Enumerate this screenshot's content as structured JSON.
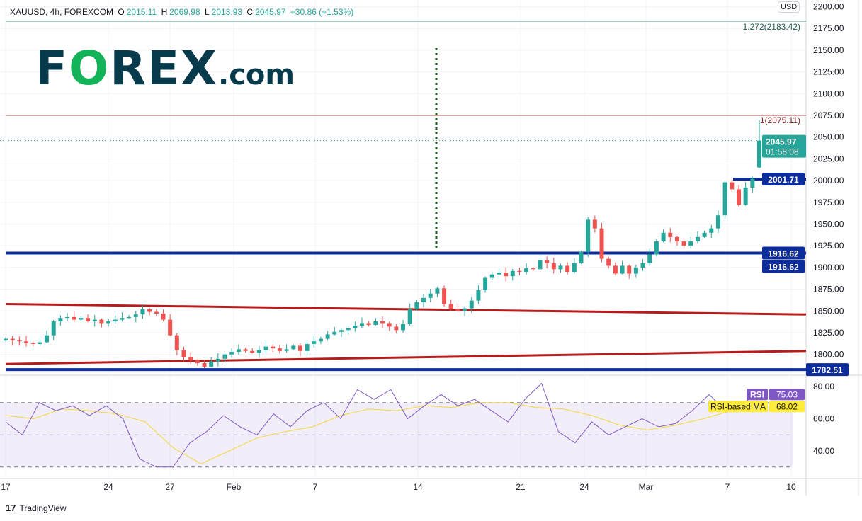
{
  "legend": {
    "symbol": "XAUUSD, 4h, FOREXCOM",
    "o_label": "O",
    "open": "2015.11",
    "h_label": "H",
    "high": "2069.98",
    "l_label": "L",
    "low": "2013.93",
    "c_label": "C",
    "close": "2045.97",
    "change": "+30.86 (+1.53%)"
  },
  "logo": {
    "text": "FOREX.com"
  },
  "currency": "USD",
  "footer": {
    "brand": "TradingView"
  },
  "colors": {
    "up": "#26a69a",
    "down": "#ef5350",
    "support": "#0d2d9c",
    "trend": "#b71c1c",
    "fib_ext": "#1e5e4e",
    "fib_1": "#7a1e1e",
    "rsi": "#7e57c2",
    "rsi_ma": "#f5d63d"
  },
  "chart_data": {
    "type": "candlestick",
    "price_axis": {
      "ticks": [
        "2200.00",
        "2175.00",
        "2150.00",
        "2125.00",
        "2100.00",
        "2075.00",
        "2050.00",
        "2025.00",
        "2000.00",
        "1975.00",
        "1950.00",
        "1925.00",
        "1900.00",
        "1875.00",
        "1850.00",
        "1825.00",
        "1800.00"
      ],
      "range": [
        1780,
        2205
      ]
    },
    "time_axis": {
      "ticks": [
        "17",
        "24",
        "27",
        "Feb",
        "7",
        "14",
        "21",
        "24",
        "Mar",
        "7",
        "10"
      ]
    },
    "closes": [
      1818,
      1816,
      1815,
      1813,
      1812,
      1814,
      1822,
      1838,
      1842,
      1843,
      1840,
      1842,
      1838,
      1840,
      1836,
      1838,
      1840,
      1842,
      1843,
      1846,
      1852,
      1849,
      1847,
      1840,
      1822,
      1805,
      1797,
      1793,
      1790,
      1786,
      1792,
      1795,
      1800,
      1803,
      1806,
      1804,
      1802,
      1805,
      1809,
      1807,
      1804,
      1806,
      1810,
      1804,
      1812,
      1815,
      1818,
      1823,
      1826,
      1828,
      1830,
      1833,
      1836,
      1834,
      1838,
      1836,
      1832,
      1828,
      1835,
      1852,
      1860,
      1865,
      1870,
      1876,
      1858,
      1852,
      1850,
      1853,
      1862,
      1874,
      1888,
      1892,
      1894,
      1890,
      1896,
      1895,
      1899,
      1898,
      1908,
      1905,
      1898,
      1902,
      1895,
      1905,
      1918,
      1955,
      1945,
      1910,
      1902,
      1893,
      1902,
      1893,
      1900,
      1905,
      1915,
      1930,
      1940,
      1935,
      1930,
      1925,
      1930,
      1935,
      1940,
      1945,
      1960,
      1998,
      1990,
      1972,
      1992,
      2002,
      2045.97
    ],
    "last_price": {
      "value": "2045.97",
      "countdown": "01:58:08"
    },
    "levels": [
      {
        "label": "1.272(2183.42)",
        "price": 2183.42,
        "kind": "fib_ext"
      },
      {
        "label": "1(2075.11)",
        "price": 2075.11,
        "kind": "fib_1"
      }
    ],
    "supports": [
      {
        "label": "2001.71",
        "price": 2001.71,
        "partial": true
      },
      {
        "label": "1916.62",
        "price": 1916.62
      },
      {
        "label": "1782.51",
        "price": 1782.51
      }
    ],
    "trendlines": [
      {
        "from": 1858,
        "to": 1846
      },
      {
        "from": 1789,
        "to": 1804
      }
    ],
    "rsi": {
      "label": "RSI",
      "value": "75.03",
      "ma_label": "RSI-based MA",
      "ma_value": "68.02",
      "ticks": [
        "80.00",
        "60.00",
        "40.00"
      ],
      "bands": [
        70,
        50,
        30
      ],
      "values": [
        58,
        50,
        70,
        65,
        68,
        62,
        68,
        60,
        35,
        30,
        30,
        45,
        52,
        62,
        55,
        50,
        63,
        55,
        65,
        70,
        60,
        78,
        72,
        78,
        60,
        68,
        75,
        68,
        72,
        65,
        58,
        72,
        82,
        52,
        45,
        58,
        50,
        55,
        60,
        55,
        57,
        65,
        75,
        65,
        70,
        75.03
      ],
      "ma": [
        62,
        60,
        66,
        65,
        63,
        58,
        42,
        32,
        40,
        48,
        52,
        55,
        62,
        66,
        65,
        68,
        67,
        70,
        70,
        67,
        66,
        62,
        56,
        53,
        56,
        60,
        65,
        68.02
      ]
    }
  }
}
